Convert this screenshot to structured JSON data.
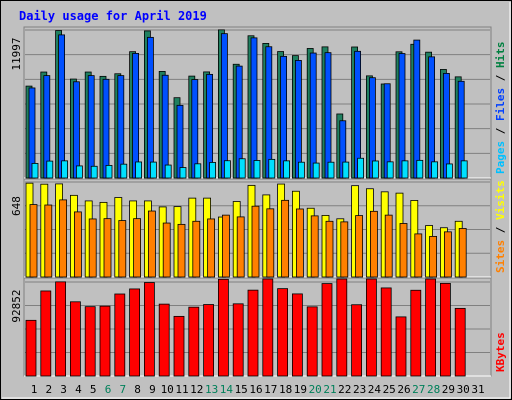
{
  "chart_data": {
    "type": "bar",
    "title": "Daily usage for April 2019",
    "days": [
      "1",
      "2",
      "3",
      "4",
      "5",
      "6",
      "7",
      "8",
      "9",
      "10",
      "11",
      "12",
      "13",
      "14",
      "15",
      "16",
      "17",
      "18",
      "19",
      "20",
      "21",
      "22",
      "23",
      "24",
      "25",
      "26",
      "27",
      "28",
      "29",
      "30",
      "31"
    ],
    "weekend_days": [
      6,
      7,
      13,
      14,
      20,
      21,
      27,
      28
    ],
    "panels": [
      {
        "id": "hits",
        "ymax_label": "11997",
        "ymax": 11997,
        "legend": [
          {
            "name": "Pages",
            "color": "#00c0ff"
          },
          {
            "name": "Files",
            "color": "#0040ff"
          },
          {
            "name": "Hits",
            "color": "#008040"
          }
        ],
        "series": [
          {
            "name": "Hits",
            "color": "#208060",
            "values": [
              7450,
              8590,
              11950,
              8020,
              8590,
              8240,
              8450,
              10240,
              11920,
              8640,
              6510,
              8260,
              8600,
              12010,
              9220,
              11530,
              10910,
              10250,
              9920,
              10500,
              10630,
              5190,
              10620,
              8280,
              7620,
              10230,
              10840,
              10200,
              8800,
              8200,
              0
            ]
          },
          {
            "name": "Files",
            "color": "#0050ff",
            "values": [
              7300,
              8300,
              11600,
              7800,
              8300,
              8000,
              8300,
              10100,
              11400,
              8330,
              5890,
              7980,
              8400,
              11700,
              9070,
              11360,
              10640,
              9860,
              9530,
              10130,
              10160,
              4640,
              10270,
              8130,
              7640,
              10090,
              11180,
              9820,
              8480,
              7840,
              0
            ]
          },
          {
            "name": "Pages",
            "color": "#00e0ff",
            "values": [
              1180,
              1370,
              1390,
              980,
              950,
              1020,
              1120,
              1300,
              1290,
              1050,
              850,
              1150,
              1260,
              1400,
              1560,
              1420,
              1510,
              1390,
              1280,
              1210,
              1280,
              1290,
              1600,
              1380,
              1310,
              1390,
              1430,
              1310,
              1140,
              1390,
              0
            ]
          }
        ]
      },
      {
        "id": "visits",
        "ymax_label": "648",
        "ymax": 648,
        "legend": [
          {
            "name": "Sites",
            "color": "#ff8000"
          },
          {
            "name": "Visits",
            "color": "#ffff00"
          }
        ],
        "series": [
          {
            "name": "Visits",
            "color": "#ffff00",
            "values": [
              640,
              633,
              635,
              557,
              519,
              509,
              542,
              519,
              519,
              478,
              480,
              538,
              538,
              409,
              515,
              625,
              560,
              634,
              585,
              469,
              420,
              397,
              623,
              602,
              581,
              572,
              522,
              351,
              336,
              380,
              0
            ]
          },
          {
            "name": "Sites",
            "color": "#ff8000",
            "values": [
              494,
              491,
              526,
              444,
              396,
              398,
              385,
              398,
              450,
              368,
              359,
              380,
              396,
              422,
              410,
              483,
              465,
              523,
              464,
              417,
              380,
              376,
              419,
              448,
              422,
              365,
              294,
              277,
              308,
              331,
              0
            ]
          }
        ]
      },
      {
        "id": "kbytes",
        "ymax_label": "92852",
        "ymax": 92852,
        "legend": [
          {
            "name": "KBytes",
            "color": "#ff0000"
          }
        ],
        "series": [
          {
            "name": "KBytes",
            "color": "#ff0000",
            "values": [
              55000,
              84000,
              93000,
              73300,
              68500,
              69000,
              81000,
              86000,
              92300,
              71000,
              58900,
              68000,
              70600,
              95500,
              71300,
              84800,
              107500,
              86300,
              81100,
              68300,
              91300,
              100800,
              70400,
              98900,
              87000,
              58400,
              84700,
              96100,
              91500,
              66800,
              0
            ]
          }
        ]
      }
    ]
  }
}
